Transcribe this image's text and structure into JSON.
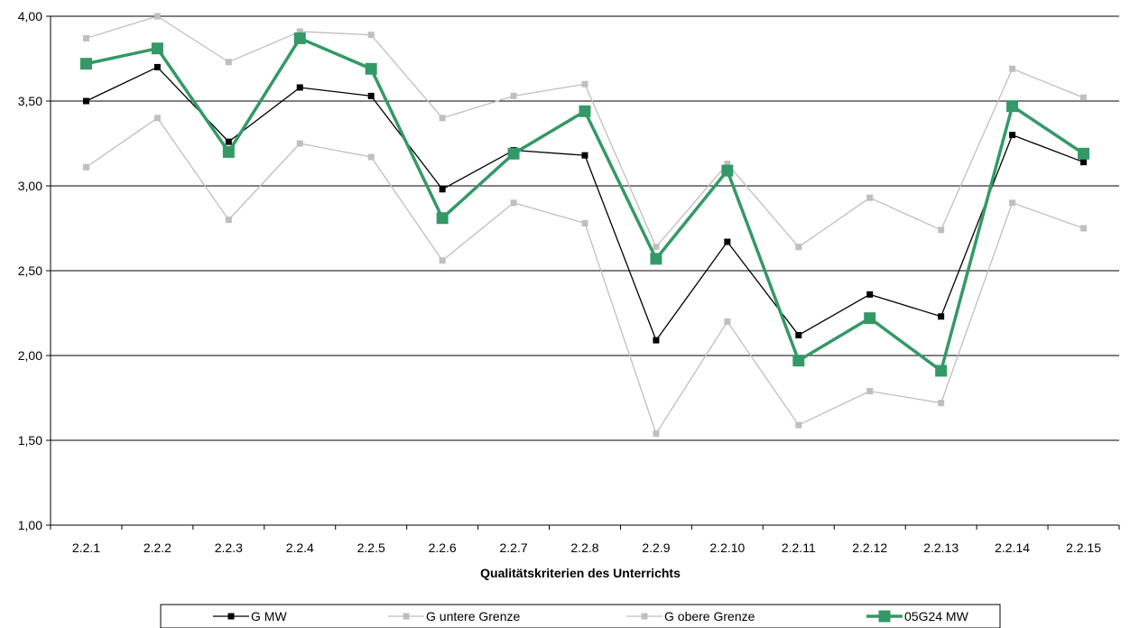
{
  "chart_data": {
    "type": "line",
    "title": "",
    "xlabel": "Qualitätskriterien des Unterrichts",
    "ylabel": "",
    "ylim": [
      1.0,
      4.0
    ],
    "ytick_step": 0.5,
    "ytick_labels": [
      "1,00",
      "1,50",
      "2,00",
      "2,50",
      "3,00",
      "3,50",
      "4,00"
    ],
    "grid": "horizontal",
    "legend_position": "bottom",
    "categories": [
      "2.2.1",
      "2.2.2",
      "2.2.3",
      "2.2.4",
      "2.2.5",
      "2.2.6",
      "2.2.7",
      "2.2.8",
      "2.2.9",
      "2.2.10",
      "2.2.11",
      "2.2.12",
      "2.2.13",
      "2.2.14",
      "2.2.15"
    ],
    "series": [
      {
        "name": "G MW",
        "color": "#000000",
        "values": [
          3.5,
          3.7,
          3.26,
          3.58,
          3.53,
          2.98,
          3.21,
          3.18,
          2.09,
          2.67,
          2.12,
          2.36,
          2.23,
          3.3,
          3.14
        ]
      },
      {
        "name": "G untere Grenze",
        "color": "#bfbfbf",
        "values": [
          3.11,
          3.4,
          2.8,
          3.25,
          3.17,
          2.56,
          2.9,
          2.78,
          1.54,
          2.2,
          1.59,
          1.79,
          1.72,
          2.9,
          2.75
        ]
      },
      {
        "name": "G obere Grenze",
        "color": "#bfbfbf",
        "values": [
          3.87,
          4.0,
          3.73,
          3.91,
          3.89,
          3.4,
          3.53,
          3.6,
          2.64,
          3.13,
          2.64,
          2.93,
          2.74,
          3.69,
          3.52
        ]
      },
      {
        "name": "05G24 MW",
        "color": "#339966",
        "values": [
          3.72,
          3.81,
          3.2,
          3.87,
          3.69,
          2.81,
          3.19,
          3.44,
          2.57,
          3.09,
          1.97,
          2.22,
          1.91,
          3.47,
          3.19
        ]
      }
    ]
  }
}
